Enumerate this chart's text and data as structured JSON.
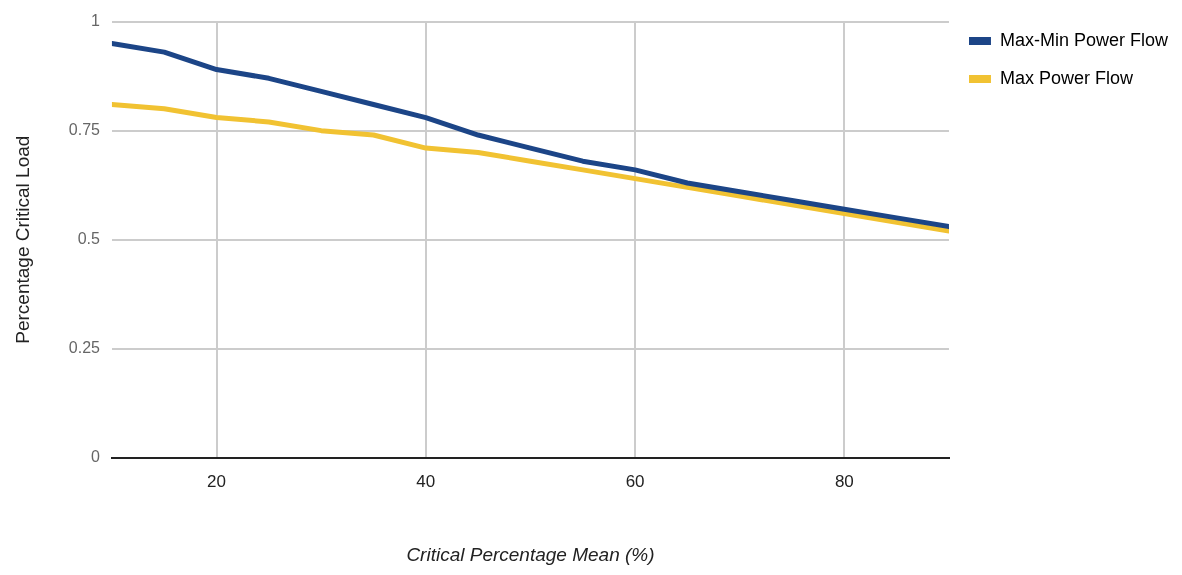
{
  "chart_data": {
    "type": "line",
    "xlabel": "Critical Percentage Mean (%)",
    "ylabel": "Percentage Critical Load",
    "x": [
      10,
      15,
      20,
      25,
      30,
      35,
      40,
      45,
      50,
      55,
      60,
      65,
      70,
      75,
      80,
      85,
      90
    ],
    "series": [
      {
        "name": "Max-Min Power Flow",
        "color": "#1c4587",
        "values": [
          0.95,
          0.93,
          0.89,
          0.87,
          0.84,
          0.81,
          0.78,
          0.74,
          0.71,
          0.68,
          0.66,
          0.63,
          0.61,
          0.59,
          0.57,
          0.55,
          0.53
        ]
      },
      {
        "name": "Max Power Flow",
        "color": "#f1c232",
        "values": [
          0.81,
          0.8,
          0.78,
          0.77,
          0.75,
          0.74,
          0.71,
          0.7,
          0.68,
          0.66,
          0.64,
          0.62,
          0.6,
          0.58,
          0.56,
          0.54,
          0.52
        ]
      }
    ],
    "xlim": [
      10,
      90
    ],
    "xticks": [
      20,
      40,
      60,
      80
    ],
    "ylim": [
      0,
      1
    ],
    "yticks": [
      0,
      {
        "value": 0.25,
        "label": "0.25"
      },
      {
        "value": 0.5,
        "label": "0.5"
      },
      {
        "value": 0.75,
        "label": "0.75"
      },
      1
    ],
    "grid": true,
    "legend": "top right",
    "marker": "none",
    "line_style": "solid"
  }
}
